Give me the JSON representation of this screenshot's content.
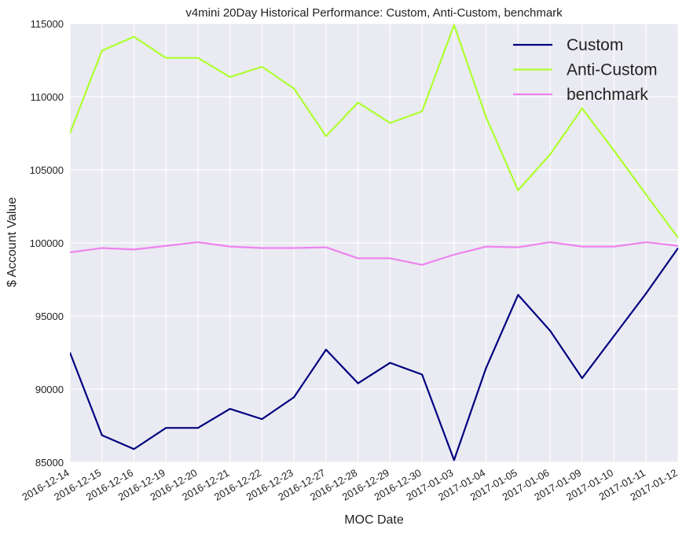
{
  "chart_data": {
    "type": "line",
    "title": "v4mini 20Day Historical Performance: Custom, Anti-Custom, benchmark",
    "xlabel": "MOC Date",
    "ylabel": "$ Account Value",
    "ylim": [
      85000,
      115000
    ],
    "yticks": [
      85000,
      90000,
      95000,
      100000,
      105000,
      110000,
      115000
    ],
    "grid": true,
    "legend_position": "top-right",
    "categories": [
      "2016-12-14",
      "2016-12-15",
      "2016-12-16",
      "2016-12-19",
      "2016-12-20",
      "2016-12-21",
      "2016-12-22",
      "2016-12-23",
      "2016-12-27",
      "2016-12-28",
      "2016-12-29",
      "2016-12-30",
      "2017-01-03",
      "2017-01-04",
      "2017-01-05",
      "2017-01-06",
      "2017-01-09",
      "2017-01-10",
      "2017-01-11",
      "2017-01-12"
    ],
    "series": [
      {
        "name": "Custom",
        "color": "#000080",
        "values": [
          92500,
          86850,
          85900,
          87350,
          87350,
          88650,
          87950,
          89450,
          92700,
          90400,
          91800,
          91000,
          85150,
          91450,
          96450,
          94000,
          90750,
          93650,
          96550,
          99650
        ]
      },
      {
        "name": "Anti-Custom",
        "color": "#adff2f",
        "values": [
          107500,
          113150,
          114100,
          112650,
          112650,
          111350,
          112050,
          110550,
          107300,
          109600,
          108200,
          109000,
          114900,
          108600,
          103600,
          106050,
          109200,
          106300,
          103300,
          100350
        ]
      },
      {
        "name": "benchmark",
        "color": "#ee82ee",
        "values": [
          99350,
          99650,
          99550,
          99800,
          100050,
          99750,
          99650,
          99650,
          99700,
          98950,
          98950,
          98500,
          99200,
          99750,
          99700,
          100050,
          99750,
          99750,
          100050,
          99800
        ]
      }
    ]
  }
}
